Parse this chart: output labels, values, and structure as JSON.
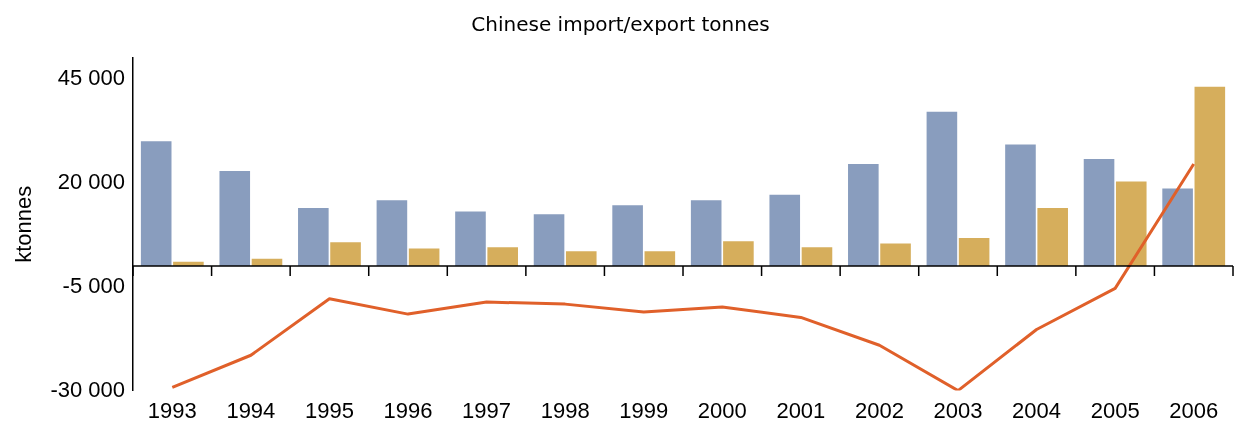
{
  "chart_data": {
    "type": "bar",
    "title": "Chinese import/export tonnes",
    "ylabel": "ktonnes",
    "categories": [
      "1993",
      "1994",
      "1995",
      "1996",
      "1997",
      "1998",
      "1999",
      "2000",
      "2001",
      "2002",
      "2003",
      "2004",
      "2005",
      "2006"
    ],
    "series": [
      {
        "color": "#899dbe",
        "values": [
          30000,
          22800,
          13900,
          15800,
          13100,
          12400,
          14600,
          15800,
          17100,
          24500,
          37100,
          29200,
          25700,
          18600
        ]
      },
      {
        "color": "#d6ae5c",
        "values": [
          1000,
          1700,
          5700,
          4200,
          4500,
          3500,
          3500,
          5900,
          4500,
          5400,
          6700,
          13900,
          20300,
          43100
        ]
      },
      {
        "type": "line",
        "color": "#e0602a",
        "values": [
          -29200,
          -21500,
          -7900,
          -11600,
          -8700,
          -9200,
          -11100,
          -9900,
          -12400,
          -19100,
          -30000,
          -15300,
          -5400,
          24500
        ]
      }
    ],
    "ylim": [
      -30000,
      50000
    ],
    "yticks": [
      {
        "value": 45000,
        "label": "45 000"
      },
      {
        "value": 20000,
        "label": "20 000"
      },
      {
        "value": -5000,
        "label": "-5 000"
      },
      {
        "value": -30000,
        "label": "-30 000"
      }
    ],
    "grid": false,
    "legend": false,
    "marker": "none"
  }
}
